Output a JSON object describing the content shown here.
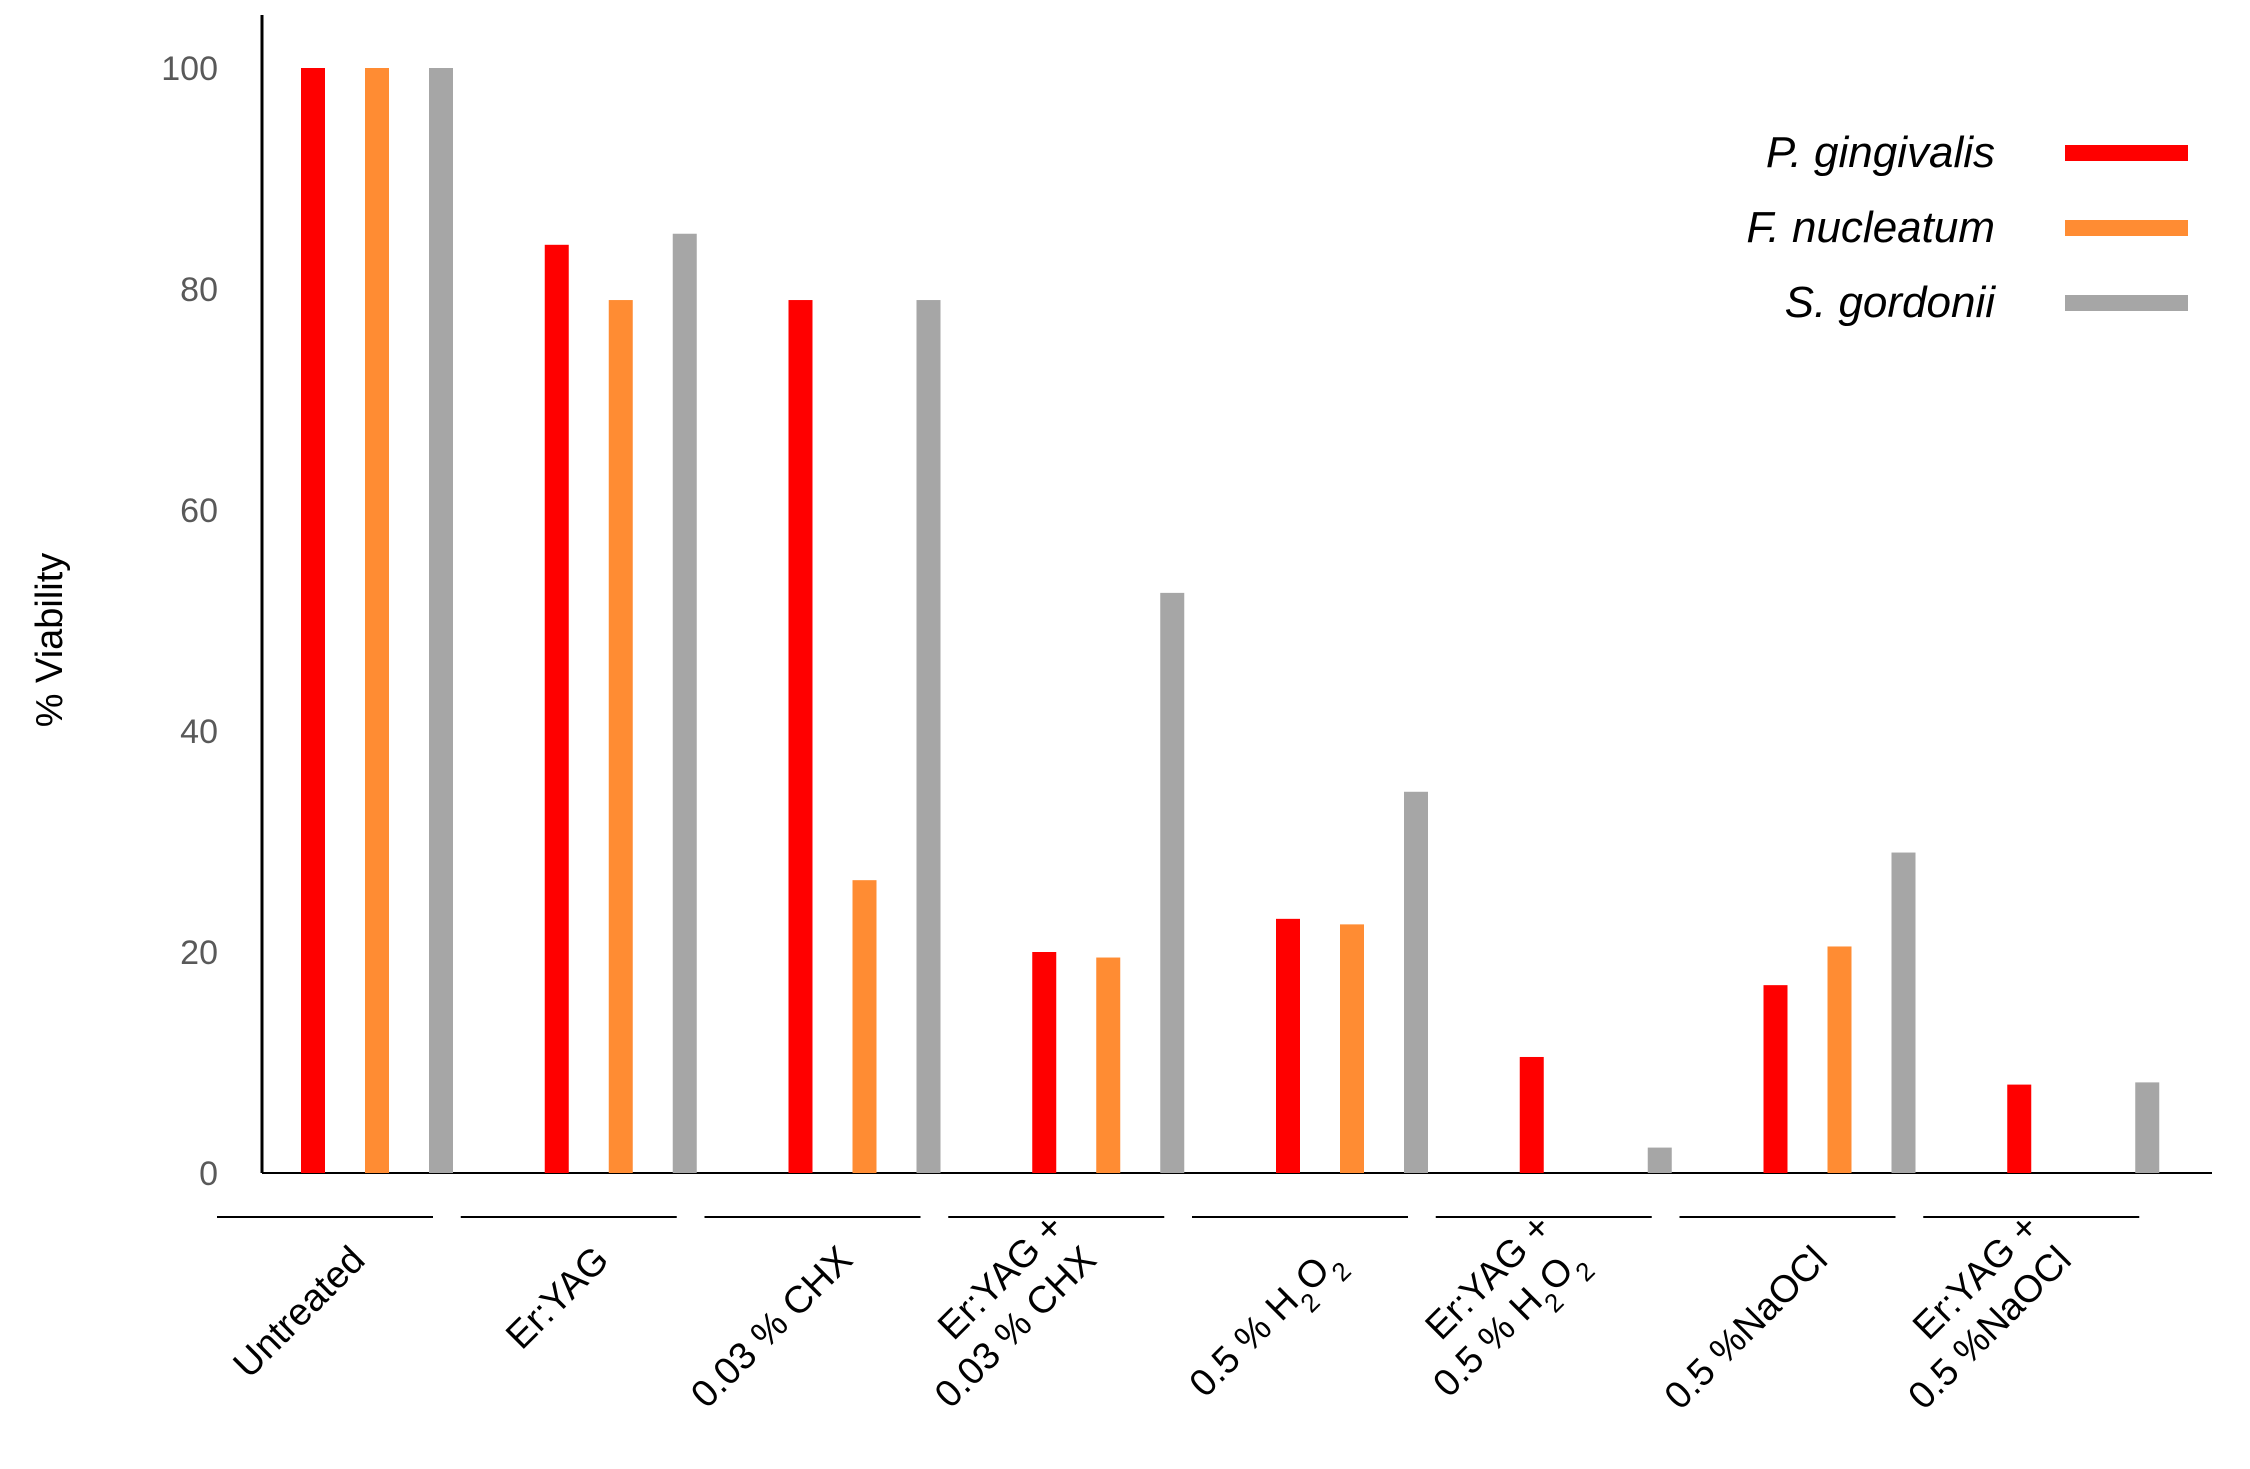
{
  "chart_data": {
    "type": "bar",
    "title": "",
    "xlabel": "",
    "ylabel": "% Viability",
    "ylim": [
      0,
      100
    ],
    "yticks": [
      "0",
      "20",
      "40",
      "60",
      "80",
      "100"
    ],
    "grid": false,
    "legend_position": "top-right",
    "categories": [
      {
        "id": "untreated",
        "lines": [
          [
            {
              "t": "Untreated"
            }
          ]
        ]
      },
      {
        "id": "eryag",
        "lines": [
          [
            {
              "t": "Er:YAG"
            }
          ]
        ]
      },
      {
        "id": "chx",
        "lines": [
          [
            {
              "t": "0.03 % CHX"
            }
          ]
        ]
      },
      {
        "id": "eryag-chx",
        "lines": [
          [
            {
              "t": "Er:YAG +"
            }
          ],
          [
            {
              "t": "0.03 % CHX"
            }
          ]
        ]
      },
      {
        "id": "h2o2",
        "lines": [
          [
            {
              "t": "0.5 % H"
            },
            {
              "t": "2",
              "sub": true
            },
            {
              "t": "O"
            },
            {
              "t": "2",
              "sub": true
            }
          ]
        ]
      },
      {
        "id": "eryag-h2o2",
        "lines": [
          [
            {
              "t": "Er:YAG +"
            }
          ],
          [
            {
              "t": "0.5 % H"
            },
            {
              "t": "2",
              "sub": true
            },
            {
              "t": "O"
            },
            {
              "t": "2",
              "sub": true
            }
          ]
        ]
      },
      {
        "id": "naocl",
        "lines": [
          [
            {
              "t": "0.5 %NaOCl"
            }
          ]
        ]
      },
      {
        "id": "eryag-naocl",
        "lines": [
          [
            {
              "t": "Er:YAG +"
            }
          ],
          [
            {
              "t": "0.5 %NaOCl"
            }
          ]
        ]
      }
    ],
    "series": [
      {
        "name": "P. gingivalis",
        "color": "#ff0000",
        "values": [
          100,
          84,
          79,
          20,
          23,
          10.5,
          17,
          8
        ]
      },
      {
        "name": "F. nucleatum",
        "color": "#ff8c33",
        "values": [
          100,
          79,
          26.5,
          19.5,
          22.5,
          0,
          20.5,
          0
        ]
      },
      {
        "name": "S. gordonii",
        "color": "#a6a6a6",
        "values": [
          100,
          85,
          79,
          52.5,
          34.5,
          2.3,
          29,
          8.2
        ]
      }
    ]
  }
}
